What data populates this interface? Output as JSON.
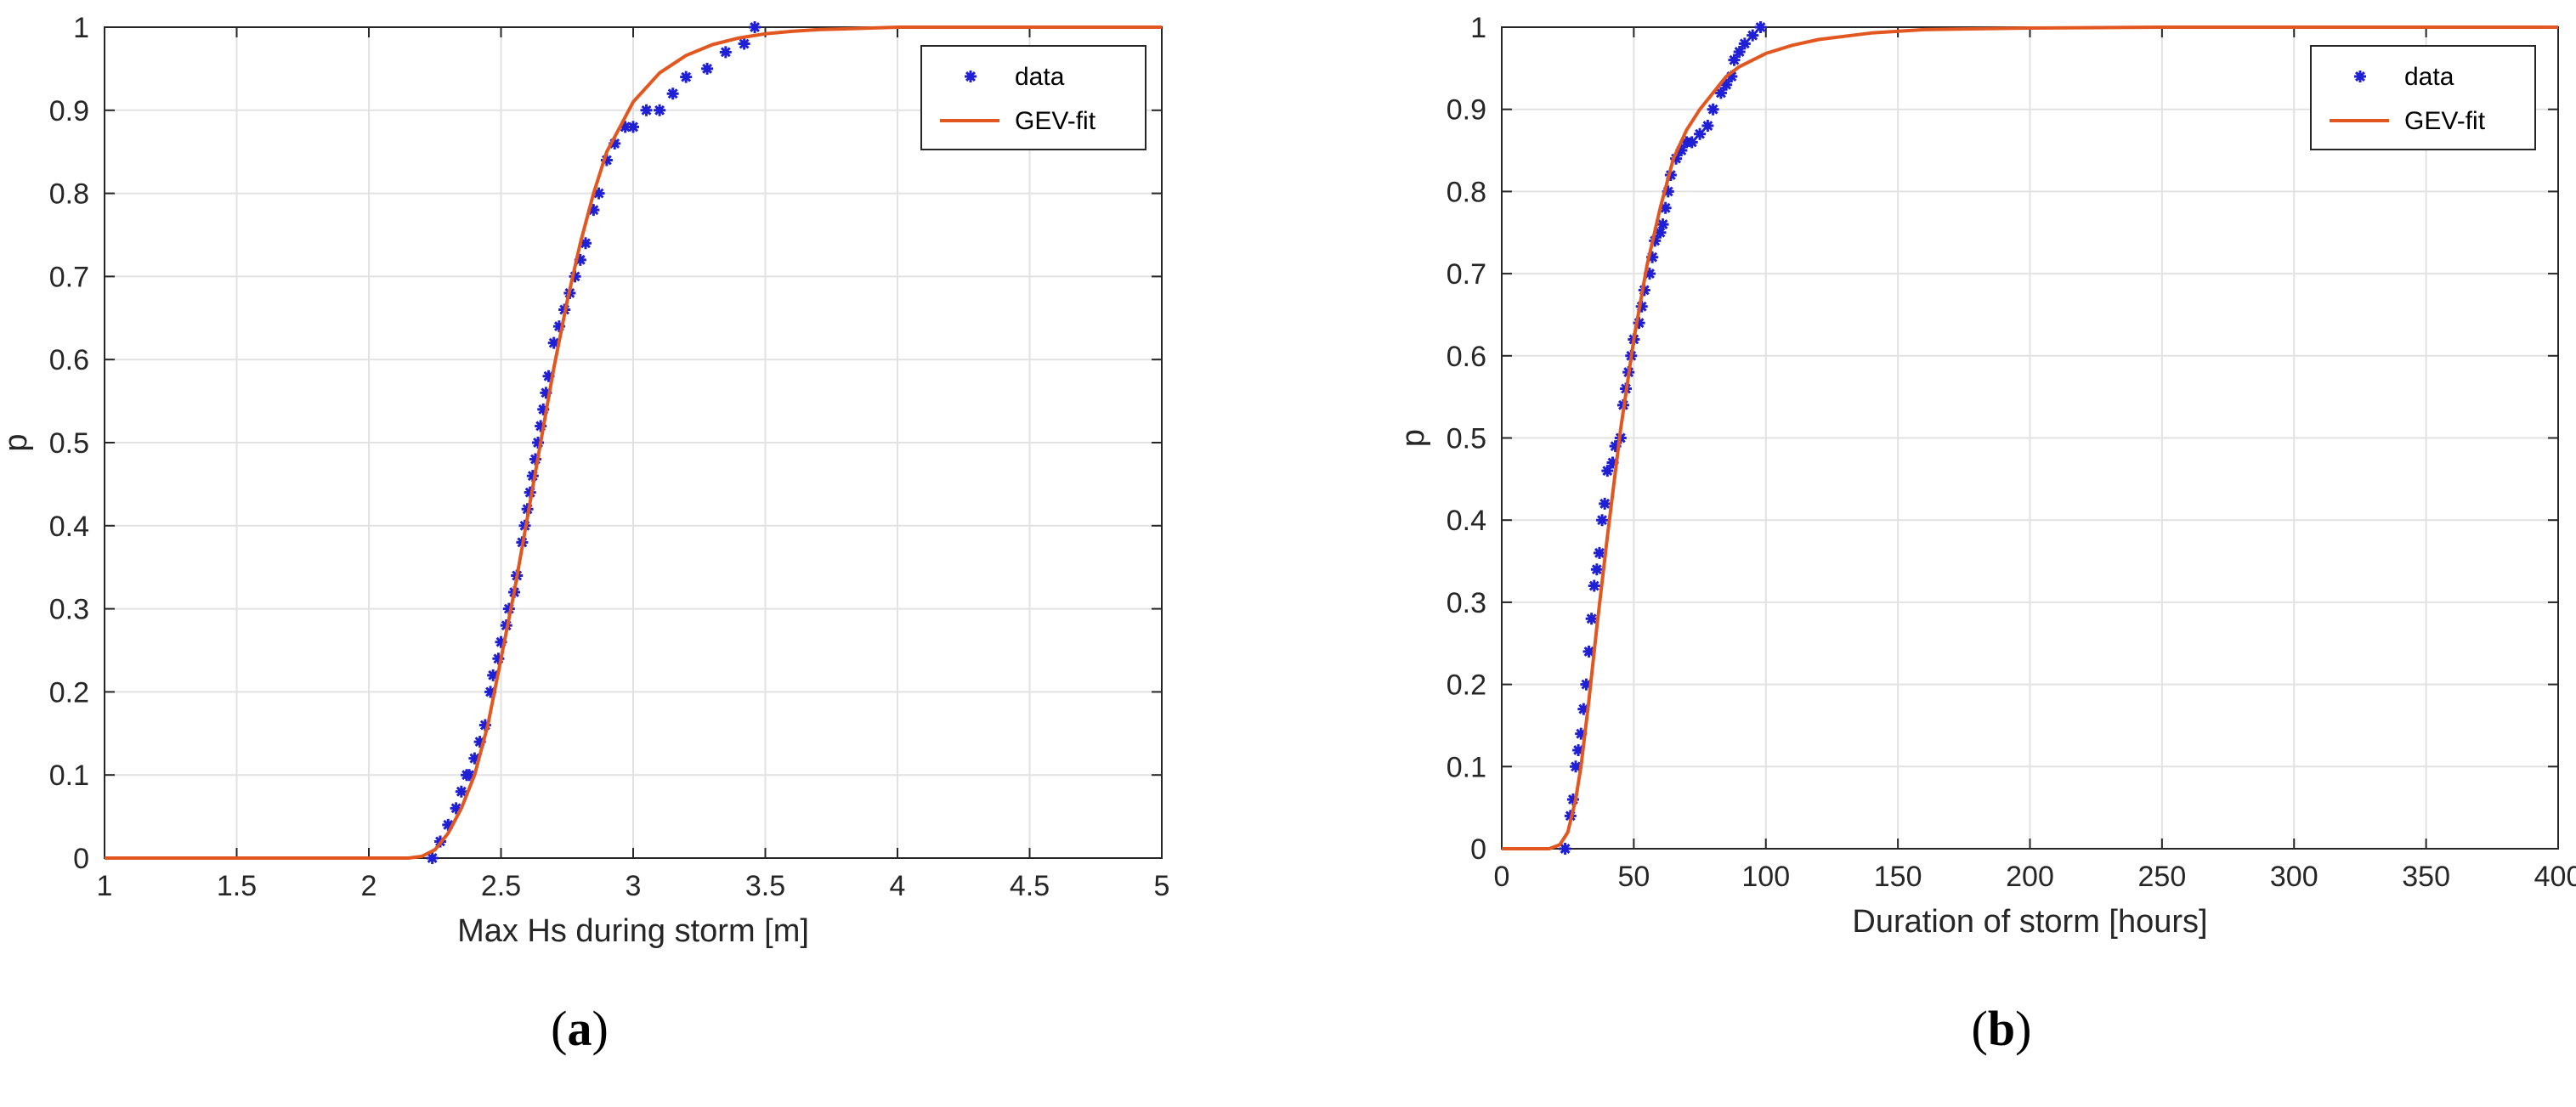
{
  "chart_data": [
    {
      "type": "scatter",
      "panel_label": {
        "open": "(",
        "letter": "a",
        "close": ")"
      },
      "xlabel": "Max Hs during storm [m]",
      "ylabel": "p",
      "xlim": [
        1,
        5
      ],
      "ylim": [
        0,
        1
      ],
      "xticks": [
        1,
        1.5,
        2,
        2.5,
        3,
        3.5,
        4,
        4.5,
        5
      ],
      "yticks": [
        0,
        0.1,
        0.2,
        0.3,
        0.4,
        0.5,
        0.6,
        0.7,
        0.8,
        0.9,
        1
      ],
      "grid": true,
      "legend_position": "top-right",
      "colors": {
        "data": "#1f1fd6",
        "fit": "#e2561f"
      },
      "series": [
        {
          "name": "data",
          "kind": "markers",
          "x": [
            2.24,
            2.27,
            2.3,
            2.33,
            2.35,
            2.37,
            2.38,
            2.4,
            2.42,
            2.44,
            2.46,
            2.47,
            2.49,
            2.5,
            2.52,
            2.53,
            2.55,
            2.56,
            2.58,
            2.59,
            2.6,
            2.61,
            2.62,
            2.63,
            2.64,
            2.65,
            2.66,
            2.67,
            2.68,
            2.7,
            2.72,
            2.74,
            2.76,
            2.78,
            2.8,
            2.82,
            2.85,
            2.87,
            2.9,
            2.93,
            2.97,
            3.0,
            3.05,
            3.1,
            3.15,
            3.2,
            3.28,
            3.35,
            3.42,
            3.46
          ],
          "y": [
            0.0,
            0.02,
            0.04,
            0.06,
            0.08,
            0.1,
            0.1,
            0.12,
            0.14,
            0.16,
            0.2,
            0.22,
            0.24,
            0.26,
            0.28,
            0.3,
            0.32,
            0.34,
            0.38,
            0.4,
            0.42,
            0.44,
            0.46,
            0.48,
            0.5,
            0.52,
            0.54,
            0.56,
            0.58,
            0.62,
            0.64,
            0.66,
            0.68,
            0.7,
            0.72,
            0.74,
            0.78,
            0.8,
            0.84,
            0.86,
            0.88,
            0.88,
            0.9,
            0.9,
            0.92,
            0.94,
            0.95,
            0.97,
            0.98,
            1.0
          ]
        },
        {
          "name": "GEV-fit",
          "kind": "line",
          "x": [
            1.0,
            2.0,
            2.1,
            2.15,
            2.2,
            2.25,
            2.3,
            2.35,
            2.4,
            2.45,
            2.5,
            2.55,
            2.6,
            2.65,
            2.7,
            2.75,
            2.8,
            2.85,
            2.9,
            2.95,
            3.0,
            3.1,
            3.2,
            3.3,
            3.4,
            3.5,
            3.6,
            3.7,
            3.8,
            3.9,
            4.0,
            5.0
          ],
          "y": [
            0.0,
            0.0,
            0.0,
            0.0,
            0.002,
            0.01,
            0.03,
            0.06,
            0.1,
            0.16,
            0.24,
            0.32,
            0.41,
            0.5,
            0.59,
            0.67,
            0.74,
            0.8,
            0.85,
            0.88,
            0.91,
            0.945,
            0.966,
            0.979,
            0.987,
            0.992,
            0.995,
            0.997,
            0.998,
            0.999,
            1.0,
            1.0
          ]
        }
      ]
    },
    {
      "type": "scatter",
      "panel_label": {
        "open": "(",
        "letter": "b",
        "close": ")"
      },
      "xlabel": "Duration of storm [hours]",
      "ylabel": "p",
      "xlim": [
        0,
        400
      ],
      "ylim": [
        0,
        1
      ],
      "xticks": [
        0,
        50,
        100,
        150,
        200,
        250,
        300,
        350,
        400
      ],
      "yticks": [
        0,
        0.1,
        0.2,
        0.3,
        0.4,
        0.5,
        0.6,
        0.7,
        0.8,
        0.9,
        1
      ],
      "grid": true,
      "legend_position": "top-right",
      "colors": {
        "data": "#1f1fd6",
        "fit": "#e2561f"
      },
      "series": [
        {
          "name": "data",
          "kind": "markers",
          "x": [
            24,
            26,
            27,
            28,
            29,
            30,
            31,
            32,
            33,
            34,
            35,
            36,
            37,
            38,
            39,
            40,
            42,
            43,
            45,
            46,
            47,
            48,
            49,
            50,
            52,
            53,
            54,
            56,
            57,
            58,
            60,
            61,
            62,
            63,
            64,
            66,
            68,
            70,
            72,
            75,
            78,
            80,
            83,
            85,
            87,
            88,
            90,
            92,
            95,
            98
          ],
          "y": [
            0.0,
            0.04,
            0.06,
            0.1,
            0.12,
            0.14,
            0.17,
            0.2,
            0.24,
            0.28,
            0.32,
            0.34,
            0.36,
            0.4,
            0.42,
            0.46,
            0.47,
            0.49,
            0.5,
            0.54,
            0.56,
            0.58,
            0.6,
            0.62,
            0.64,
            0.66,
            0.68,
            0.7,
            0.72,
            0.74,
            0.75,
            0.76,
            0.78,
            0.8,
            0.82,
            0.84,
            0.85,
            0.86,
            0.86,
            0.87,
            0.88,
            0.9,
            0.92,
            0.93,
            0.94,
            0.96,
            0.97,
            0.98,
            0.99,
            1.0
          ]
        },
        {
          "name": "GEV-fit",
          "kind": "line",
          "x": [
            0,
            18,
            22,
            25,
            28,
            30,
            33,
            36,
            40,
            45,
            50,
            55,
            60,
            65,
            70,
            75,
            80,
            85,
            90,
            100,
            110,
            120,
            140,
            160,
            180,
            200,
            250,
            400
          ],
          "y": [
            0.0,
            0.0,
            0.005,
            0.02,
            0.06,
            0.1,
            0.18,
            0.27,
            0.38,
            0.51,
            0.62,
            0.71,
            0.78,
            0.84,
            0.875,
            0.9,
            0.92,
            0.94,
            0.952,
            0.968,
            0.978,
            0.985,
            0.993,
            0.997,
            0.998,
            0.999,
            1.0,
            1.0
          ]
        }
      ]
    }
  ]
}
